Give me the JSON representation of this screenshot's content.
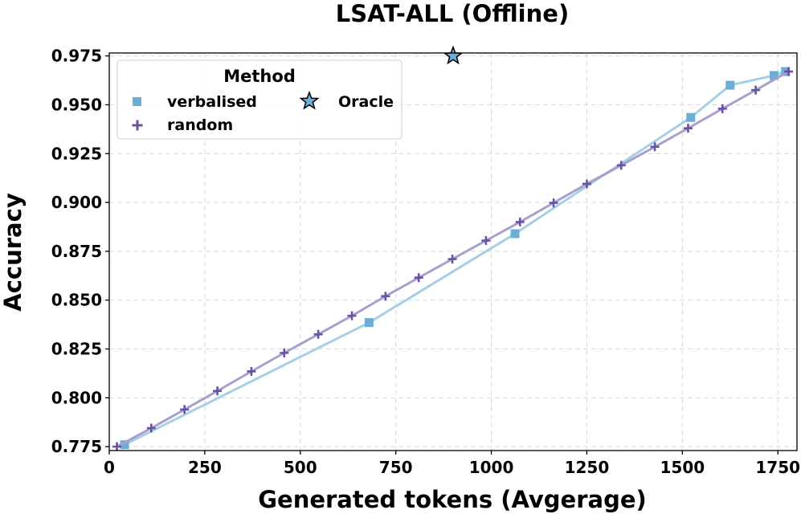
{
  "chart_data": {
    "type": "line",
    "title": "LSAT-ALL (Offline)",
    "xlabel": "Generated tokens (Avgerage)",
    "ylabel": "Accuracy",
    "xlim": [
      0,
      1800
    ],
    "ylim": [
      0.773,
      0.9765
    ],
    "xticks": [
      0,
      250,
      500,
      750,
      1000,
      1250,
      1500,
      1750
    ],
    "yticks": [
      0.775,
      0.8,
      0.825,
      0.85,
      0.875,
      0.9,
      0.925,
      0.95,
      0.975
    ],
    "ytick_labels": [
      "0.775",
      "0.800",
      "0.825",
      "0.850",
      "0.875",
      "0.900",
      "0.925",
      "0.950",
      "0.975"
    ],
    "grid": true,
    "legend": {
      "title": "Method",
      "position": "top-left"
    },
    "series": [
      {
        "name": "verbalised",
        "marker": "square",
        "color": "#6baed6",
        "line_color": "#a6cfe6",
        "x": [
          40,
          680,
          1062,
          1522,
          1625,
          1740,
          1770
        ],
        "y": [
          0.776,
          0.8385,
          0.884,
          0.9435,
          0.96,
          0.965,
          0.967
        ]
      },
      {
        "name": "random",
        "marker": "plus",
        "color": "#6a51a3",
        "line_color": "#a99fcf",
        "x": [
          20,
          110,
          197,
          283,
          372,
          458,
          547,
          635,
          723,
          810,
          898,
          986,
          1075,
          1163,
          1250,
          1340,
          1428,
          1515,
          1605,
          1692,
          1778
        ],
        "y": [
          0.775,
          0.7845,
          0.794,
          0.8035,
          0.8135,
          0.823,
          0.8325,
          0.842,
          0.852,
          0.8615,
          0.871,
          0.8805,
          0.89,
          0.8998,
          0.9095,
          0.919,
          0.9285,
          0.938,
          0.948,
          0.9575,
          0.967
        ]
      },
      {
        "name": "Oracle",
        "marker": "star",
        "color": "#6baed6",
        "x": [
          900
        ],
        "y": [
          0.975
        ]
      }
    ]
  }
}
